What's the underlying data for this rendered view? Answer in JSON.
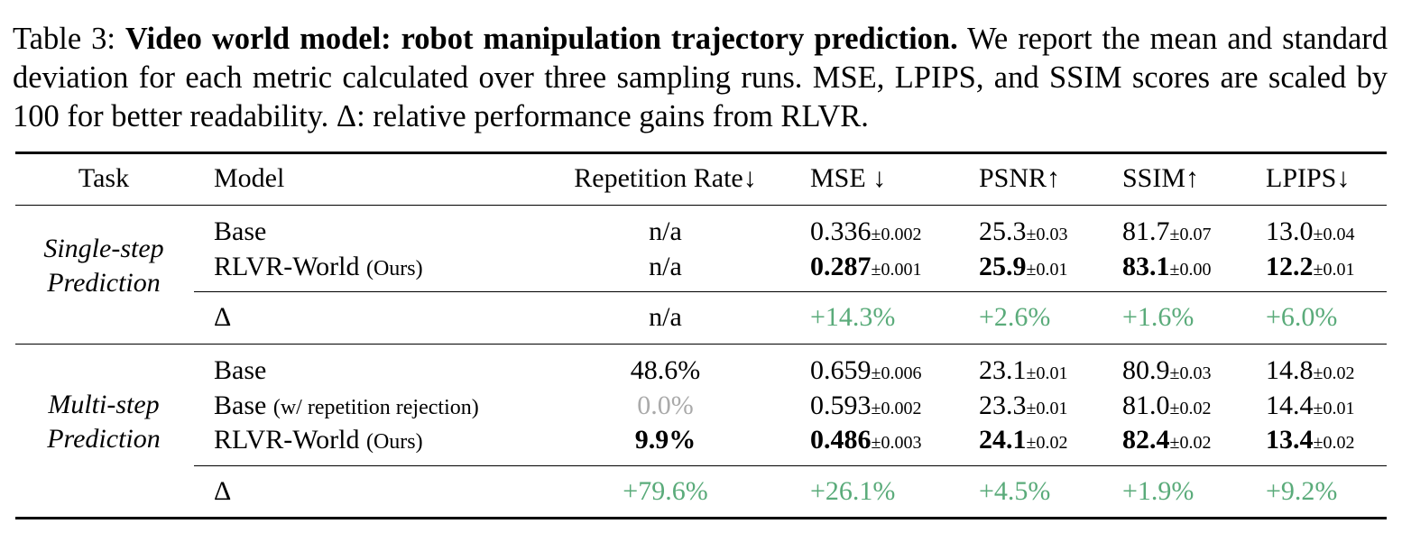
{
  "caption": {
    "label": "Table 3:",
    "title": "Video world model: robot manipulation trajectory prediction.",
    "text": "We report the mean and standard deviation for each metric calculated over three sampling runs. MSE, LPIPS, and SSIM scores are scaled by 100 for better readability. Δ: relative performance gains from RLVR."
  },
  "headers": {
    "task": "Task",
    "model": "Model",
    "rep": "Repetition Rate↓",
    "mse": "MSE ↓",
    "psnr": "PSNR↑",
    "ssim": "SSIM↑",
    "lpips": "LPIPS↓"
  },
  "single": {
    "task_line1": "Single-step",
    "task_line2": "Prediction",
    "base": {
      "model": "Base",
      "rep": "n/a",
      "mse": "0.336",
      "mse_sd": "±0.002",
      "psnr": "25.3",
      "psnr_sd": "±0.03",
      "ssim": "81.7",
      "ssim_sd": "±0.07",
      "lpips": "13.0",
      "lpips_sd": "±0.04"
    },
    "rlvr": {
      "model": "RLVR-World",
      "note": "(Ours)",
      "rep": "n/a",
      "mse": "0.287",
      "mse_sd": "±0.001",
      "psnr": "25.9",
      "psnr_sd": "±0.01",
      "ssim": "83.1",
      "ssim_sd": "±0.00",
      "lpips": "12.2",
      "lpips_sd": "±0.01"
    },
    "delta": {
      "label": "Δ",
      "rep": "n/a",
      "mse": "+14.3%",
      "psnr": "+2.6%",
      "ssim": "+1.6%",
      "lpips": "+6.0%"
    }
  },
  "multi": {
    "task_line1": "Multi-step",
    "task_line2": "Prediction",
    "base": {
      "model": "Base",
      "rep": "48.6%",
      "mse": "0.659",
      "mse_sd": "±0.006",
      "psnr": "23.1",
      "psnr_sd": "±0.01",
      "ssim": "80.9",
      "ssim_sd": "±0.03",
      "lpips": "14.8",
      "lpips_sd": "±0.02"
    },
    "base_rej": {
      "model": "Base",
      "note": "(w/ repetition rejection)",
      "rep": "0.0%",
      "mse": "0.593",
      "mse_sd": "±0.002",
      "psnr": "23.3",
      "psnr_sd": "±0.01",
      "ssim": "81.0",
      "ssim_sd": "±0.02",
      "lpips": "14.4",
      "lpips_sd": "±0.01"
    },
    "rlvr": {
      "model": "RLVR-World",
      "note": "(Ours)",
      "rep": "9.9%",
      "mse": "0.486",
      "mse_sd": "±0.003",
      "psnr": "24.1",
      "psnr_sd": "±0.02",
      "ssim": "82.4",
      "ssim_sd": "±0.02",
      "lpips": "13.4",
      "lpips_sd": "±0.02"
    },
    "delta": {
      "label": "Δ",
      "rep": "+79.6%",
      "mse": "+26.1%",
      "psnr": "+4.5%",
      "ssim": "+1.9%",
      "lpips": "+9.2%"
    }
  },
  "colors": {
    "gain": "#5aab7a",
    "muted": "#aaaaaa"
  }
}
